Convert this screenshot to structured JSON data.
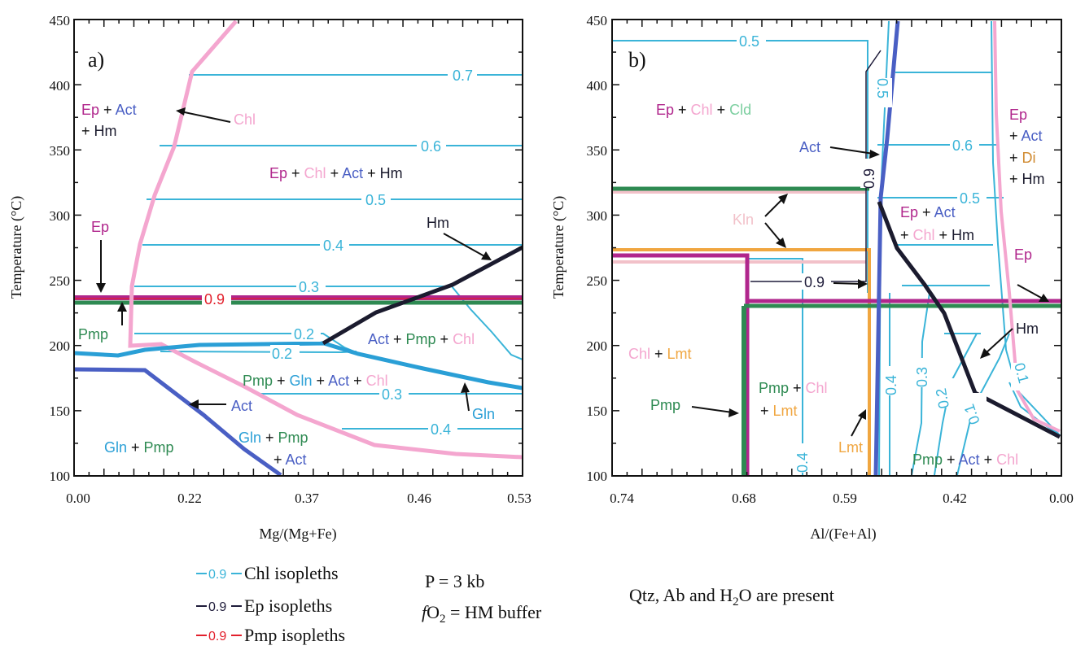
{
  "colors": {
    "chl": "#3ab4d8",
    "ep": "#1f1c3a",
    "pmp": "#e2202c",
    "ep_phase": "#b0268c",
    "chl_phase": "#f4a6cf",
    "act_phase": "#4a5fc4",
    "hm_phase": "#1b1b2e",
    "pmp_phase": "#2e8a52",
    "gln_phase": "#2a9fd6",
    "kln_phase": "#f2c1c9",
    "lmt_phase": "#f0a640",
    "cld_phase": "#7ccfa0",
    "di_phase": "#d08a30",
    "axis": "#111111"
  },
  "panel_a": {
    "label": "a)",
    "xlabel": "Mg/(Mg+Fe)",
    "ylabel": "Temperature (°C)",
    "x_ticks": [
      "0.00",
      "0.22",
      "0.37",
      "0.46",
      "0.53"
    ],
    "y_ticks": [
      "100",
      "150",
      "200",
      "250",
      "300",
      "350",
      "400",
      "450"
    ],
    "ylim": [
      100,
      450
    ],
    "isopleth_labels": [
      "0.7",
      "0.6",
      "0.5",
      "0.4",
      "0.3",
      "0.9",
      "0.2",
      "0.2",
      "0.3",
      "0.4"
    ],
    "field_labels": {
      "ep_act_hm": {
        "ep": "Ep",
        "plus1": " + ",
        "act": "Act",
        "line2_plus": "+ ",
        "hm": "Hm"
      },
      "ep_chl_act_hm": {
        "ep": "Ep",
        "p1": " + ",
        "chl": "Chl",
        "p2": " + ",
        "act": "Act",
        "p3": " + ",
        "hm": "Hm"
      },
      "act_pmp_chl": {
        "act": "Act",
        "p1": " + ",
        "pmp": "Pmp",
        "p2": " + ",
        "chl": "Chl"
      },
      "pmp_gln_act_chl": {
        "pmp": "Pmp",
        "p1": " + ",
        "gln": "Gln",
        "p2": " + ",
        "act": "Act",
        "p3": " + ",
        "chl": "Chl"
      },
      "gln_pmp": {
        "gln": "Gln",
        "p1": " + ",
        "pmp": "Pmp"
      },
      "gln_pmp_act": {
        "gln": "Gln",
        "p1": " + ",
        "pmp": "Pmp",
        "line2_plus": "+ ",
        "act": "Act"
      }
    },
    "curve_labels": {
      "chl": "Chl",
      "ep": "Ep",
      "pmp": "Pmp",
      "hm": "Hm",
      "act": "Act",
      "gln": "Gln"
    }
  },
  "panel_b": {
    "label": "b)",
    "xlabel": "Al/(Fe+Al)",
    "ylabel": "Temperature (°C)",
    "x_ticks": [
      "0.74",
      "0.68",
      "0.59",
      "0.42",
      "0.00"
    ],
    "y_ticks": [
      "100",
      "150",
      "200",
      "250",
      "300",
      "350",
      "400",
      "450"
    ],
    "ylim": [
      100,
      450
    ],
    "isopleth_labels": [
      "0.5",
      "0.5",
      "0.6",
      "0.5",
      "0.9",
      "0.9",
      "0.4",
      "0.4",
      "0.3",
      "0.2",
      "0.1",
      "0.1"
    ],
    "field_labels": {
      "ep_chl_cld": {
        "ep": "Ep",
        "p1": " + ",
        "chl": "Chl",
        "p2": " + ",
        "cld": "Cld"
      },
      "ep_act_di_hm": {
        "ep": "Ep",
        "l2": "+ ",
        "act": "Act",
        "l3": "+ ",
        "di": "Di",
        "l4": "+ ",
        "hm": "Hm"
      },
      "ep_act_chl_hm": {
        "ep": "Ep",
        "p1": " + ",
        "act": "Act",
        "l2": "+ ",
        "chl": "Chl",
        "p2": " + ",
        "hm": "Hm"
      },
      "chl_lmt": {
        "chl": "Chl",
        "p1": " + ",
        "lmt": "Lmt"
      },
      "pmp_chl_lmt": {
        "pmp": "Pmp",
        "p1": " + ",
        "chl": "Chl",
        "l2": "+ ",
        "lmt": "Lmt"
      },
      "pmp_act_chl": {
        "pmp": "Pmp",
        "p1": " + ",
        "act": "Act",
        "p2": " + ",
        "chl": "Chl"
      }
    },
    "curve_labels": {
      "act": "Act",
      "kln": "Kln",
      "ep": "Ep",
      "hm": "Hm",
      "pmp": "Pmp",
      "lmt": "Lmt"
    }
  },
  "legend": {
    "items": [
      {
        "value": "0.9",
        "text": "Chl isopleths"
      },
      {
        "value": "0.9",
        "text": "Ep isopleths"
      },
      {
        "value": "0.9",
        "text": "Pmp isopleths"
      }
    ],
    "pressure": "P = 3 kb",
    "fo2_f": "f",
    "fo2_o": "O",
    "fo2_sub": "2",
    "fo2_rest": " = HM buffer",
    "present_pre": "Qtz, Ab and H",
    "present_sub": "2",
    "present_post": "O are present"
  }
}
